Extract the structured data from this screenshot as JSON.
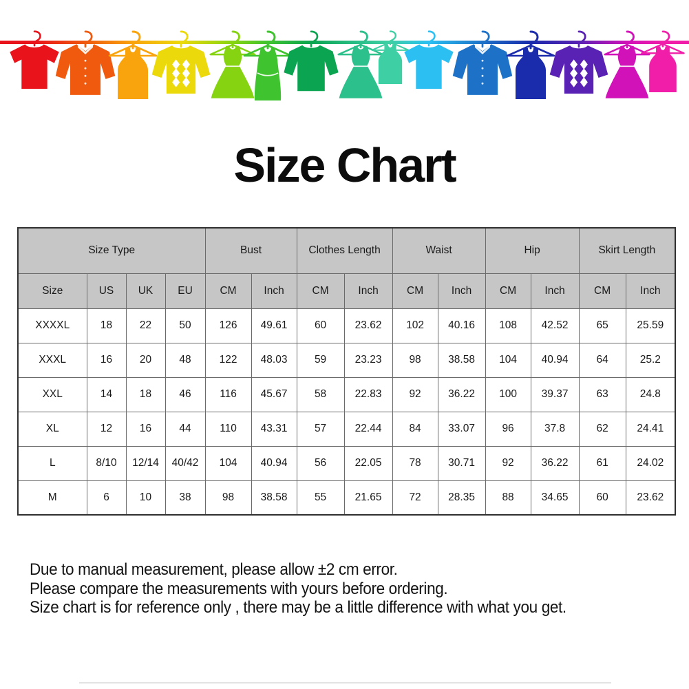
{
  "title": "Size Chart",
  "banner": {
    "items": [
      {
        "type": "tshirt",
        "color": "#e9131b"
      },
      {
        "type": "shirt",
        "color": "#ef5a0e"
      },
      {
        "type": "tank",
        "color": "#f9a40c"
      },
      {
        "type": "sweater",
        "color": "#ecd90b"
      },
      {
        "type": "dress",
        "color": "#86d411"
      },
      {
        "type": "tankdress",
        "color": "#3fc32f"
      },
      {
        "type": "longsleeve",
        "color": "#0ba551"
      },
      {
        "type": "dress",
        "color": "#2cc08c"
      },
      {
        "type": "tank",
        "color": "#3ecfa4"
      },
      {
        "type": "tshirt",
        "color": "#2cc0f2"
      },
      {
        "type": "shirt",
        "color": "#1d72c8"
      },
      {
        "type": "tank",
        "color": "#1a2bac"
      },
      {
        "type": "sweater",
        "color": "#5a22b4"
      },
      {
        "type": "dress",
        "color": "#d112b8"
      },
      {
        "type": "tank",
        "color": "#f01ea8"
      }
    ]
  },
  "chart_data": {
    "type": "table",
    "title": "Size Chart",
    "group_headers": [
      {
        "label": "Size Type",
        "span": 4
      },
      {
        "label": "Bust",
        "span": 2
      },
      {
        "label": "Clothes Length",
        "span": 2
      },
      {
        "label": "Waist",
        "span": 2
      },
      {
        "label": "Hip",
        "span": 2
      },
      {
        "label": "Skirt Length",
        "span": 2
      }
    ],
    "sub_headers": [
      "Size",
      "US",
      "UK",
      "EU",
      "CM",
      "Inch",
      "CM",
      "Inch",
      "CM",
      "Inch",
      "CM",
      "Inch",
      "CM",
      "Inch"
    ],
    "rows": [
      [
        "XXXXL",
        "18",
        "22",
        "50",
        "126",
        "49.61",
        "60",
        "23.62",
        "102",
        "40.16",
        "108",
        "42.52",
        "65",
        "25.59"
      ],
      [
        "XXXL",
        "16",
        "20",
        "48",
        "122",
        "48.03",
        "59",
        "23.23",
        "98",
        "38.58",
        "104",
        "40.94",
        "64",
        "25.2"
      ],
      [
        "XXL",
        "14",
        "18",
        "46",
        "116",
        "45.67",
        "58",
        "22.83",
        "92",
        "36.22",
        "100",
        "39.37",
        "63",
        "24.8"
      ],
      [
        "XL",
        "12",
        "16",
        "44",
        "110",
        "43.31",
        "57",
        "22.44",
        "84",
        "33.07",
        "96",
        "37.8",
        "62",
        "24.41"
      ],
      [
        "L",
        "8/10",
        "12/14",
        "40/42",
        "104",
        "40.94",
        "56",
        "22.05",
        "78",
        "30.71",
        "92",
        "36.22",
        "61",
        "24.02"
      ],
      [
        "M",
        "6",
        "10",
        "38",
        "98",
        "38.58",
        "55",
        "21.65",
        "72",
        "28.35",
        "88",
        "34.65",
        "60",
        "23.62"
      ]
    ]
  },
  "notes": [
    "Due to manual measurement, please allow ±2 cm error.",
    "Please compare the measurements with yours before ordering.",
    "Size chart is for reference only , there may be a little difference with what you get."
  ],
  "colors": {
    "header_bg": "#c6c6c6",
    "grid_border": "#6a6a6a",
    "outer_border": "#2f2f2f",
    "text": "#1a1a1a"
  }
}
